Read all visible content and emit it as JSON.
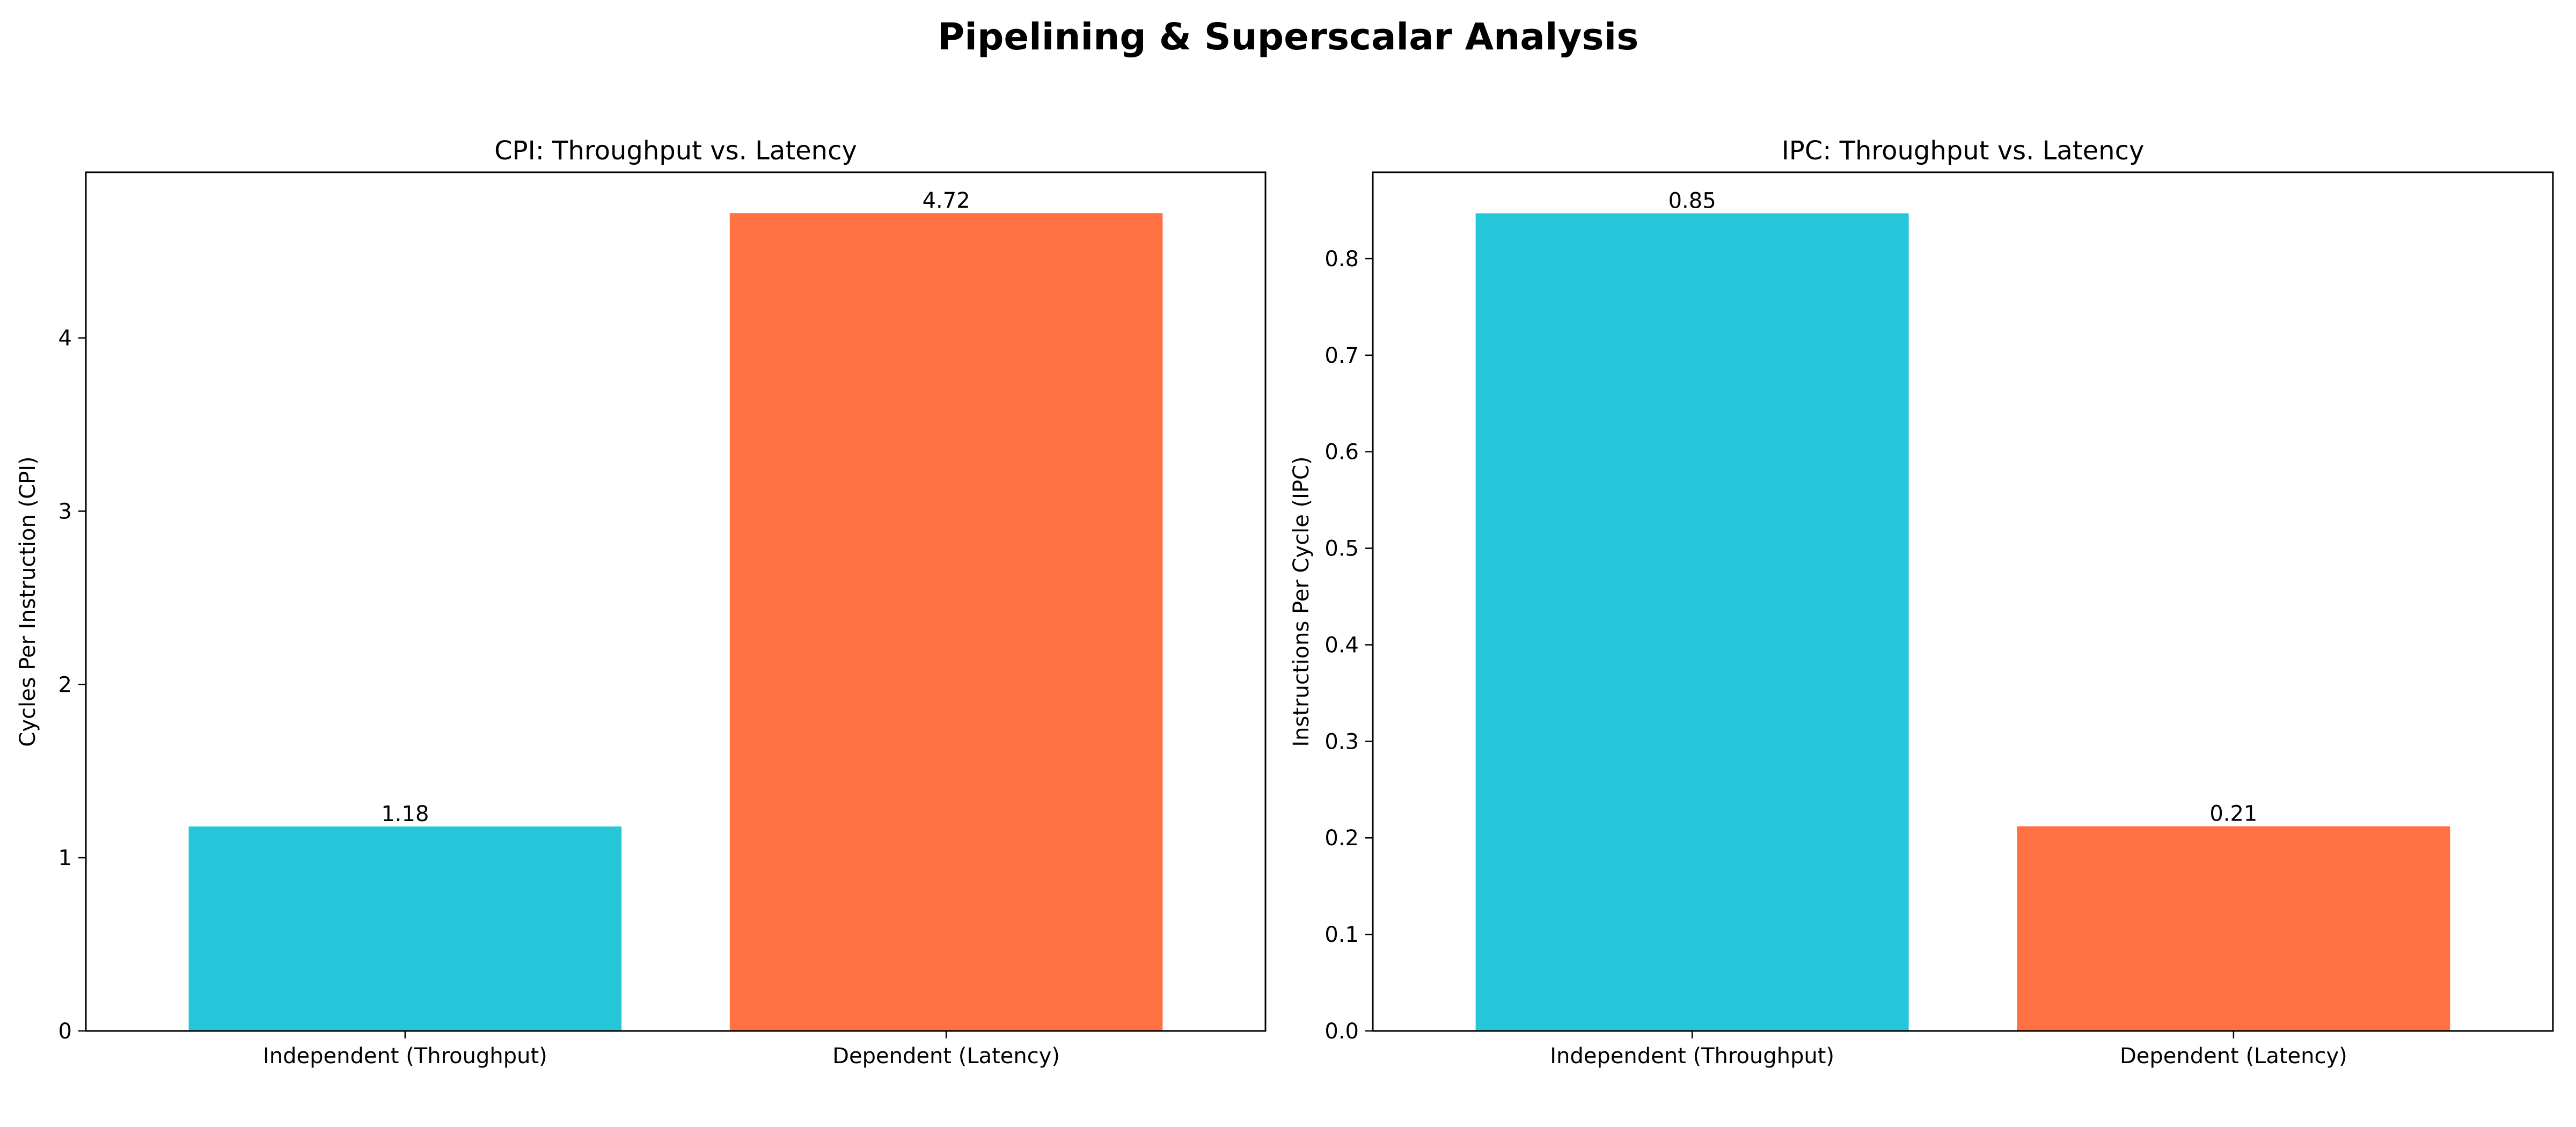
{
  "figure": {
    "title": "Pipelining & Superscalar Analysis"
  },
  "chart_data": [
    {
      "type": "bar",
      "title": "CPI: Throughput vs. Latency",
      "xlabel": "",
      "ylabel": "Cycles Per Instruction (CPI)",
      "categories": [
        "Independent (Throughput)",
        "Dependent (Latency)"
      ],
      "values": [
        1.18,
        4.72
      ],
      "value_labels": [
        "1.18",
        "4.72"
      ],
      "bar_colors": [
        "#26C6DA",
        "#FF7043"
      ],
      "ylim": [
        0,
        4.956
      ],
      "yticks": [
        0,
        1,
        2,
        3,
        4
      ],
      "ytick_labels": [
        "0",
        "1",
        "2",
        "3",
        "4"
      ],
      "grid": false,
      "legend": "none"
    },
    {
      "type": "bar",
      "title": "IPC: Throughput vs. Latency",
      "xlabel": "",
      "ylabel": "Instructions Per Cycle (IPC)",
      "categories": [
        "Independent (Throughput)",
        "Dependent (Latency)"
      ],
      "values": [
        0.847,
        0.212
      ],
      "value_labels": [
        "0.85",
        "0.21"
      ],
      "bar_colors": [
        "#26C6DA",
        "#FF7043"
      ],
      "ylim": [
        0,
        0.8895
      ],
      "yticks": [
        0,
        0.1,
        0.2,
        0.3,
        0.4,
        0.5,
        0.6,
        0.7,
        0.8
      ],
      "ytick_labels": [
        "0.0",
        "0.1",
        "0.2",
        "0.3",
        "0.4",
        "0.5",
        "0.6",
        "0.7",
        "0.8"
      ],
      "grid": false,
      "legend": "none"
    }
  ]
}
